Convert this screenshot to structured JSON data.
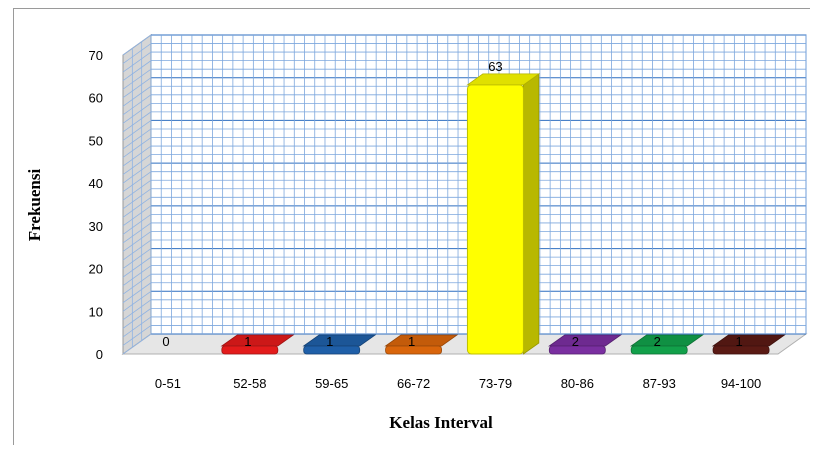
{
  "chart_data": {
    "type": "bar",
    "categories": [
      "0-51",
      "52-58",
      "59-65",
      "66-72",
      "73-79",
      "80-86",
      "87-93",
      "94-100"
    ],
    "values": [
      0,
      1,
      1,
      1,
      63,
      2,
      2,
      1
    ],
    "data_labels": [
      "0",
      "1",
      "1",
      "1",
      "63",
      "2",
      "2",
      "1"
    ],
    "colors": [
      "#ffffff",
      "#e31b1b",
      "#1f5fa8",
      "#d9650b",
      "#ffff00",
      "#7a2fa0",
      "#12a04a",
      "#5a1a14"
    ],
    "xlabel": "Kelas Interval",
    "ylabel": "Frekuensi",
    "ylim": [
      0,
      70
    ],
    "yticks": [
      "0",
      "10",
      "20",
      "30",
      "40",
      "50",
      "60",
      "70"
    ],
    "grid": true,
    "style": "3d"
  }
}
